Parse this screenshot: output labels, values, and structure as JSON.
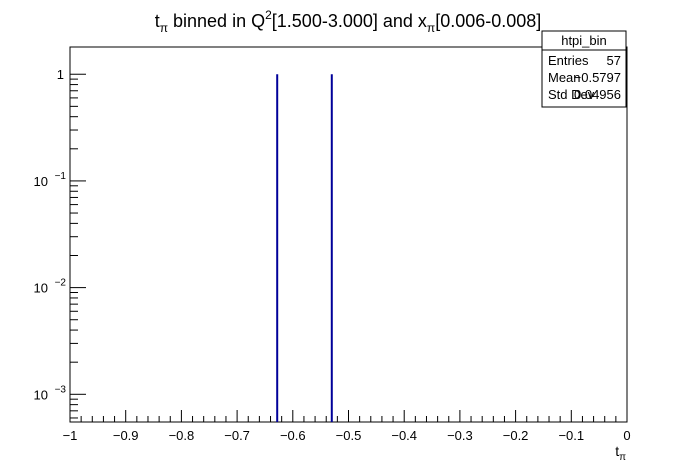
{
  "chart_data": {
    "type": "bar",
    "title": {
      "t": "t",
      "t_sub": "π",
      "mid1": " binned in Q",
      "q_sup": "2",
      "range_q": "[1.500-3.000] and x",
      "x_sub": "π",
      "range_x": "[0.006-0.008]"
    },
    "xlabel": {
      "base": "t",
      "sub": "π"
    },
    "ylabel": "",
    "xlim": [
      -1,
      0
    ],
    "ylim": [
      0.00055,
      1.8
    ],
    "yscale": "log",
    "x_ticks": [
      {
        "v": -1,
        "label": "−1"
      },
      {
        "v": -0.9,
        "label": "−0.9"
      },
      {
        "v": -0.8,
        "label": "−0.8"
      },
      {
        "v": -0.7,
        "label": "−0.7"
      },
      {
        "v": -0.6,
        "label": "−0.6"
      },
      {
        "v": -0.5,
        "label": "−0.5"
      },
      {
        "v": -0.4,
        "label": "−0.4"
      },
      {
        "v": -0.3,
        "label": "−0.3"
      },
      {
        "v": -0.2,
        "label": "−0.2"
      },
      {
        "v": -0.1,
        "label": "−0.1"
      },
      {
        "v": 0,
        "label": "0"
      }
    ],
    "y_ticks": [
      {
        "v": 1,
        "base": "1",
        "exp": ""
      },
      {
        "v": 0.1,
        "base": "10",
        "exp": "−1"
      },
      {
        "v": 0.01,
        "base": "10",
        "exp": "−2"
      },
      {
        "v": 0.001,
        "base": "10",
        "exp": "−3"
      }
    ],
    "series": [
      {
        "color": "#000099",
        "bins": [
          {
            "x": -0.628,
            "y": 1
          },
          {
            "x": -0.53,
            "y": 1
          }
        ]
      }
    ],
    "stats": {
      "name": "htpi_bin",
      "rows": [
        {
          "label": "Entries",
          "value": "57"
        },
        {
          "label": "Mean",
          "value": "−0.5797"
        },
        {
          "label": "Std Dev",
          "value": "0.04956"
        }
      ]
    },
    "grid": false
  }
}
